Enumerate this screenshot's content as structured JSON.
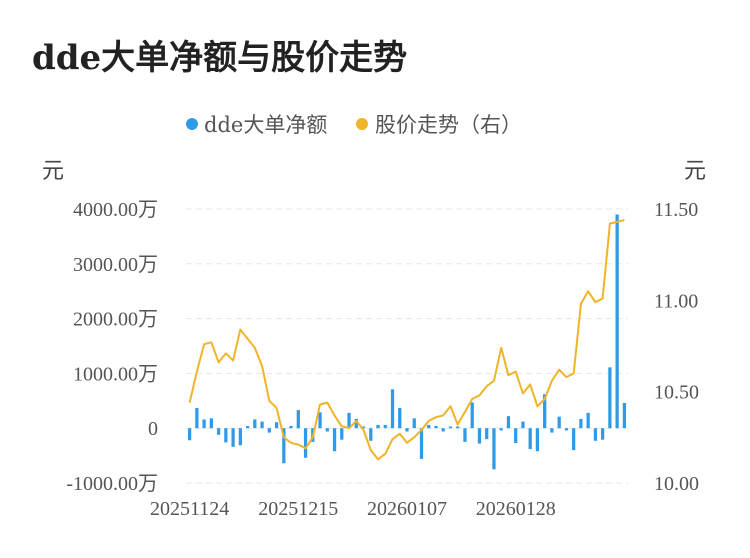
{
  "title": "dde大单净额与股价走势",
  "chart_data": {
    "type": "bar+line",
    "legend": {
      "position": "top-center",
      "items": [
        "dde大单净额",
        "股价走势（右）"
      ]
    },
    "left_axis": {
      "unit": "元",
      "ticks": [
        "4000.00万",
        "3000.00万",
        "2000.00万",
        "1000.00万",
        "0",
        "-1000.00万"
      ],
      "range": [
        -1000,
        4000
      ]
    },
    "right_axis": {
      "unit": "元",
      "ticks": [
        "11.50",
        "11.00",
        "10.50",
        "10.00"
      ],
      "range": [
        10.0,
        11.5
      ]
    },
    "x_ticks": [
      {
        "label": "20251124",
        "index": 0
      },
      {
        "label": "20251215",
        "index": 15
      },
      {
        "label": "20260107",
        "index": 30
      },
      {
        "label": "20260128",
        "index": 45
      }
    ],
    "grid": true,
    "colors": {
      "bar": "#2f9be8",
      "line": "#f0b429",
      "grid": "#e6e6e6"
    },
    "series": [
      {
        "name": "dde大单净额",
        "type": "bar",
        "values": [
          -220,
          370,
          160,
          180,
          -120,
          -260,
          -340,
          -310,
          40,
          160,
          120,
          -80,
          110,
          -640,
          40,
          330,
          -540,
          -250,
          290,
          -60,
          -420,
          -210,
          280,
          170,
          30,
          -230,
          60,
          60,
          710,
          370,
          -60,
          180,
          -560,
          60,
          40,
          -60,
          30,
          30,
          -250,
          470,
          -280,
          -200,
          -750,
          -40,
          220,
          -270,
          120,
          -380,
          -420,
          620,
          -80,
          210,
          -40,
          -400,
          170,
          280,
          -230,
          -210,
          1110,
          3900,
          460
        ]
      },
      {
        "name": "股价走势（右）",
        "type": "line",
        "values": [
          10.44,
          10.61,
          10.76,
          10.77,
          10.66,
          10.71,
          10.67,
          10.84,
          10.79,
          10.74,
          10.64,
          10.45,
          10.41,
          10.25,
          10.22,
          10.21,
          10.19,
          10.25,
          10.43,
          10.44,
          10.37,
          10.31,
          10.3,
          10.34,
          10.29,
          10.18,
          10.13,
          10.16,
          10.24,
          10.27,
          10.22,
          10.25,
          10.29,
          10.34,
          10.36,
          10.37,
          10.42,
          10.32,
          10.39,
          10.46,
          10.48,
          10.53,
          10.56,
          10.74,
          10.59,
          10.61,
          10.49,
          10.54,
          10.42,
          10.46,
          10.56,
          10.62,
          10.58,
          10.6,
          10.98,
          11.05,
          10.99,
          11.01,
          11.42,
          11.43,
          11.44
        ]
      }
    ]
  }
}
